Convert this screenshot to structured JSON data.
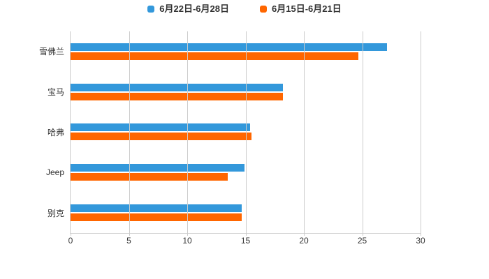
{
  "chart_data": {
    "type": "bar",
    "orientation": "horizontal",
    "title": "",
    "categories": [
      "雪佛兰",
      "宝马",
      "哈弗",
      "Jeep",
      "别克"
    ],
    "series": [
      {
        "name": "6月22日-6月28日",
        "color": "#3398DB",
        "values": [
          27.1,
          18.2,
          15.4,
          14.9,
          14.7
        ]
      },
      {
        "name": "6月15日-6月21日",
        "color": "#FF6600",
        "values": [
          24.7,
          18.2,
          15.5,
          13.5,
          14.7
        ]
      }
    ],
    "x_axis": {
      "min": 0,
      "max": 30,
      "tick_interval": 5,
      "ticks": [
        0,
        5,
        10,
        15,
        20,
        25,
        30
      ]
    },
    "y_axis_label": "",
    "legend_position": "top",
    "grid": true,
    "colors": {
      "axis_line": "#cccccc",
      "grid_line": "#cccccc",
      "text": "#333333",
      "background": "#ffffff"
    }
  }
}
